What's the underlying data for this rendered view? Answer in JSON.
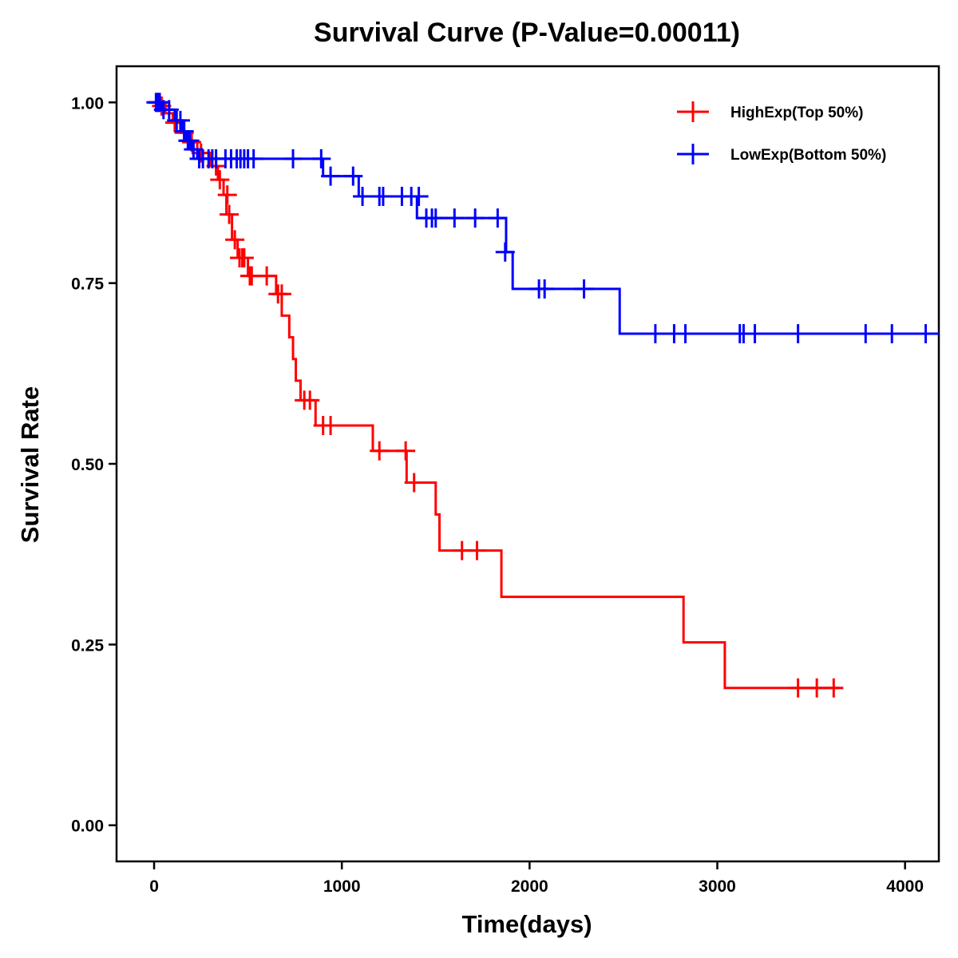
{
  "chart_data": {
    "type": "line",
    "subtype": "kaplan-meier step",
    "title": "Survival Curve (P-Value=0.00011)",
    "xlabel": "Time(days)",
    "ylabel": "Survival Rate",
    "xlim": [
      -200,
      4180
    ],
    "ylim": [
      -0.05,
      1.05
    ],
    "xticks": [
      0,
      1000,
      2000,
      3000,
      4000
    ],
    "xtick_labels": [
      "0",
      "1000",
      "2000",
      "3000",
      "4000"
    ],
    "yticks": [
      0,
      0.25,
      0.5,
      0.75,
      1.0
    ],
    "ytick_labels": [
      "0.00",
      "0.25",
      "0.50",
      "0.75",
      "1.00"
    ],
    "grid": false,
    "legend_position": "top-right",
    "series": [
      {
        "name": "HighExp(Top 50%)",
        "color": "#FF0000",
        "steps": [
          [
            0,
            1.0
          ],
          [
            60,
            0.985
          ],
          [
            100,
            0.972
          ],
          [
            140,
            0.958
          ],
          [
            180,
            0.945
          ],
          [
            230,
            0.93
          ],
          [
            300,
            0.912
          ],
          [
            340,
            0.893
          ],
          [
            370,
            0.872
          ],
          [
            385,
            0.845
          ],
          [
            415,
            0.81
          ],
          [
            445,
            0.785
          ],
          [
            500,
            0.76
          ],
          [
            650,
            0.735
          ],
          [
            680,
            0.705
          ],
          [
            720,
            0.675
          ],
          [
            740,
            0.645
          ],
          [
            755,
            0.615
          ],
          [
            780,
            0.588
          ],
          [
            860,
            0.553
          ],
          [
            1165,
            0.518
          ],
          [
            1345,
            0.474
          ],
          [
            1500,
            0.43
          ],
          [
            1520,
            0.38
          ],
          [
            1850,
            0.316
          ],
          [
            2820,
            0.253
          ],
          [
            3040,
            0.19
          ]
        ],
        "end_time": 3650,
        "censored": [
          [
            20,
            1.0
          ],
          [
            40,
            0.995
          ],
          [
            110,
            0.972
          ],
          [
            160,
            0.958
          ],
          [
            200,
            0.945
          ],
          [
            250,
            0.93
          ],
          [
            330,
            0.912
          ],
          [
            350,
            0.893
          ],
          [
            390,
            0.872
          ],
          [
            400,
            0.845
          ],
          [
            430,
            0.81
          ],
          [
            455,
            0.785
          ],
          [
            470,
            0.785
          ],
          [
            480,
            0.785
          ],
          [
            510,
            0.76
          ],
          [
            520,
            0.76
          ],
          [
            600,
            0.76
          ],
          [
            660,
            0.735
          ],
          [
            680,
            0.735
          ],
          [
            800,
            0.588
          ],
          [
            830,
            0.588
          ],
          [
            900,
            0.553
          ],
          [
            940,
            0.553
          ],
          [
            1200,
            0.518
          ],
          [
            1340,
            0.518
          ],
          [
            1385,
            0.474
          ],
          [
            1640,
            0.38
          ],
          [
            1720,
            0.38
          ],
          [
            3430,
            0.19
          ],
          [
            3530,
            0.19
          ],
          [
            3620,
            0.19
          ]
        ]
      },
      {
        "name": "LowExp(Bottom 50%)",
        "color": "#0000FF",
        "steps": [
          [
            0,
            1.0
          ],
          [
            40,
            0.99
          ],
          [
            110,
            0.975
          ],
          [
            150,
            0.96
          ],
          [
            170,
            0.947
          ],
          [
            200,
            0.935
          ],
          [
            230,
            0.922
          ],
          [
            900,
            0.898
          ],
          [
            1090,
            0.87
          ],
          [
            1400,
            0.84
          ],
          [
            1875,
            0.793
          ],
          [
            1910,
            0.742
          ],
          [
            2480,
            0.68
          ]
        ],
        "end_time": 4180,
        "censored": [
          [
            10,
            1.0
          ],
          [
            20,
            1.0
          ],
          [
            30,
            1.0
          ],
          [
            50,
            0.99
          ],
          [
            80,
            0.99
          ],
          [
            120,
            0.975
          ],
          [
            140,
            0.975
          ],
          [
            160,
            0.96
          ],
          [
            180,
            0.947
          ],
          [
            190,
            0.947
          ],
          [
            210,
            0.935
          ],
          [
            240,
            0.922
          ],
          [
            260,
            0.922
          ],
          [
            290,
            0.922
          ],
          [
            310,
            0.922
          ],
          [
            330,
            0.922
          ],
          [
            380,
            0.922
          ],
          [
            410,
            0.922
          ],
          [
            440,
            0.922
          ],
          [
            460,
            0.922
          ],
          [
            480,
            0.922
          ],
          [
            500,
            0.922
          ],
          [
            530,
            0.922
          ],
          [
            740,
            0.922
          ],
          [
            890,
            0.922
          ],
          [
            940,
            0.898
          ],
          [
            1060,
            0.898
          ],
          [
            1110,
            0.87
          ],
          [
            1200,
            0.87
          ],
          [
            1220,
            0.87
          ],
          [
            1320,
            0.87
          ],
          [
            1370,
            0.87
          ],
          [
            1410,
            0.87
          ],
          [
            1450,
            0.84
          ],
          [
            1480,
            0.84
          ],
          [
            1500,
            0.84
          ],
          [
            1600,
            0.84
          ],
          [
            1710,
            0.84
          ],
          [
            1830,
            0.84
          ],
          [
            1870,
            0.793
          ],
          [
            2050,
            0.742
          ],
          [
            2080,
            0.742
          ],
          [
            2290,
            0.742
          ],
          [
            2670,
            0.68
          ],
          [
            2770,
            0.68
          ],
          [
            2830,
            0.68
          ],
          [
            3120,
            0.68
          ],
          [
            3140,
            0.68
          ],
          [
            3200,
            0.68
          ],
          [
            3430,
            0.68
          ],
          [
            3790,
            0.68
          ],
          [
            3930,
            0.68
          ],
          [
            4110,
            0.68
          ]
        ]
      }
    ]
  }
}
